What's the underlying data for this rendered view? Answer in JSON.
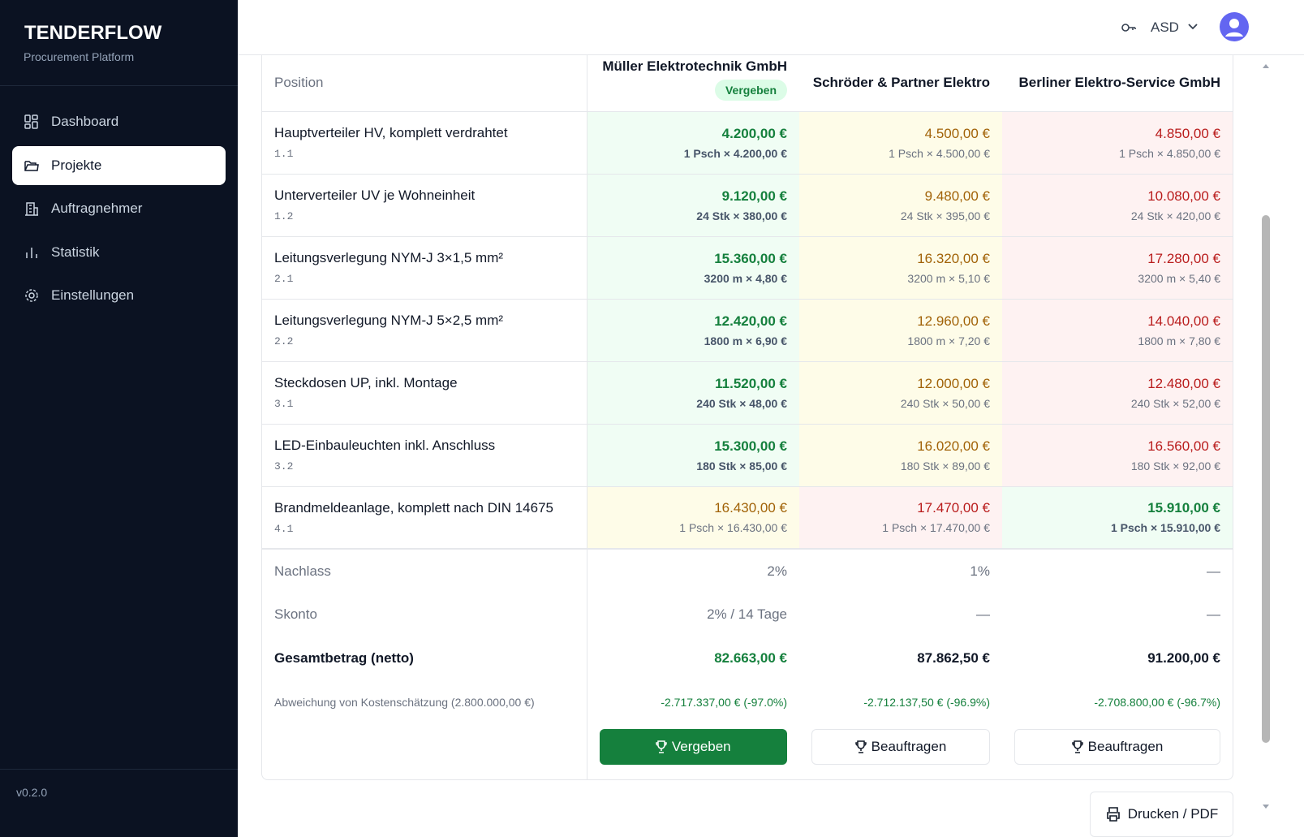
{
  "sidebar": {
    "brand": "TENDERFLOW",
    "subtitle": "Procurement Platform",
    "nav": [
      {
        "label": "Dashboard",
        "active": false
      },
      {
        "label": "Projekte",
        "active": true
      },
      {
        "label": "Auftragnehmer",
        "active": false
      },
      {
        "label": "Statistik",
        "active": false
      },
      {
        "label": "Einstellungen",
        "active": false
      }
    ],
    "version": "v0.2.0"
  },
  "header": {
    "user": "ASD"
  },
  "table": {
    "position_header": "Position",
    "bidders": [
      {
        "name": "Müller Elektrotechnik GmbH",
        "badge": "Vergeben"
      },
      {
        "name": "Schröder & Partner Elektro"
      },
      {
        "name": "Berliner Elektro-Service GmbH"
      }
    ],
    "rows": [
      {
        "label": "Hauptverteiler HV, komplett verdrahtet",
        "code": "1.1",
        "cells": [
          {
            "total": "4.200,00 €",
            "detail": "1 Psch × 4.200,00 €",
            "tone": "green"
          },
          {
            "total": "4.500,00 €",
            "detail": "1 Psch × 4.500,00 €",
            "tone": "yellow"
          },
          {
            "total": "4.850,00 €",
            "detail": "1 Psch × 4.850,00 €",
            "tone": "red"
          }
        ]
      },
      {
        "label": "Unterverteiler UV je Wohneinheit",
        "code": "1.2",
        "cells": [
          {
            "total": "9.120,00 €",
            "detail": "24 Stk × 380,00 €",
            "tone": "green"
          },
          {
            "total": "9.480,00 €",
            "detail": "24 Stk × 395,00 €",
            "tone": "yellow"
          },
          {
            "total": "10.080,00 €",
            "detail": "24 Stk × 420,00 €",
            "tone": "red"
          }
        ]
      },
      {
        "label": "Leitungsverlegung NYM-J 3×1,5 mm²",
        "code": "2.1",
        "cells": [
          {
            "total": "15.360,00 €",
            "detail": "3200 m × 4,80 €",
            "tone": "green"
          },
          {
            "total": "16.320,00 €",
            "detail": "3200 m × 5,10 €",
            "tone": "yellow"
          },
          {
            "total": "17.280,00 €",
            "detail": "3200 m × 5,40 €",
            "tone": "red"
          }
        ]
      },
      {
        "label": "Leitungsverlegung NYM-J 5×2,5 mm²",
        "code": "2.2",
        "cells": [
          {
            "total": "12.420,00 €",
            "detail": "1800 m × 6,90 €",
            "tone": "green"
          },
          {
            "total": "12.960,00 €",
            "detail": "1800 m × 7,20 €",
            "tone": "yellow"
          },
          {
            "total": "14.040,00 €",
            "detail": "1800 m × 7,80 €",
            "tone": "red"
          }
        ]
      },
      {
        "label": "Steckdosen UP, inkl. Montage",
        "code": "3.1",
        "cells": [
          {
            "total": "11.520,00 €",
            "detail": "240 Stk × 48,00 €",
            "tone": "green"
          },
          {
            "total": "12.000,00 €",
            "detail": "240 Stk × 50,00 €",
            "tone": "yellow"
          },
          {
            "total": "12.480,00 €",
            "detail": "240 Stk × 52,00 €",
            "tone": "red"
          }
        ]
      },
      {
        "label": "LED-Einbauleuchten inkl. Anschluss",
        "code": "3.2",
        "cells": [
          {
            "total": "15.300,00 €",
            "detail": "180 Stk × 85,00 €",
            "tone": "green"
          },
          {
            "total": "16.020,00 €",
            "detail": "180 Stk × 89,00 €",
            "tone": "yellow"
          },
          {
            "total": "16.560,00 €",
            "detail": "180 Stk × 92,00 €",
            "tone": "red"
          }
        ]
      },
      {
        "label": "Brandmeldeanlage, komplett nach DIN 14675",
        "code": "4.1",
        "cells": [
          {
            "total": "16.430,00 €",
            "detail": "1 Psch × 16.430,00 €",
            "tone": "yellow"
          },
          {
            "total": "17.470,00 €",
            "detail": "1 Psch × 17.470,00 €",
            "tone": "red"
          },
          {
            "total": "15.910,00 €",
            "detail": "1 Psch × 15.910,00 €",
            "tone": "green"
          }
        ]
      }
    ],
    "summary": [
      {
        "label": "Nachlass",
        "values": [
          "2%",
          "1%",
          "—"
        ],
        "style": "plain"
      },
      {
        "label": "Skonto",
        "values": [
          "2% / 14 Tage",
          "—",
          "—"
        ],
        "style": "plain"
      },
      {
        "label": "Gesamtbetrag (netto)",
        "values": [
          "82.663,00 €",
          "87.862,50 €",
          "91.200,00 €"
        ],
        "style": "total",
        "tones": [
          "green",
          "default",
          "default"
        ]
      },
      {
        "label": "Abweichung von Kostenschätzung (2.800.000,00 €)",
        "values": [
          "-2.717.337,00 € (-97.0%)",
          "-2.712.137,50 € (-96.9%)",
          "-2.708.800,00 € (-96.7%)"
        ],
        "style": "deviation"
      }
    ],
    "buttons": [
      {
        "label": "Vergeben",
        "style": "filled"
      },
      {
        "label": "Beauftragen",
        "style": "outline"
      },
      {
        "label": "Beauftragen",
        "style": "outline"
      }
    ]
  },
  "print_button": "Drucken / PDF"
}
